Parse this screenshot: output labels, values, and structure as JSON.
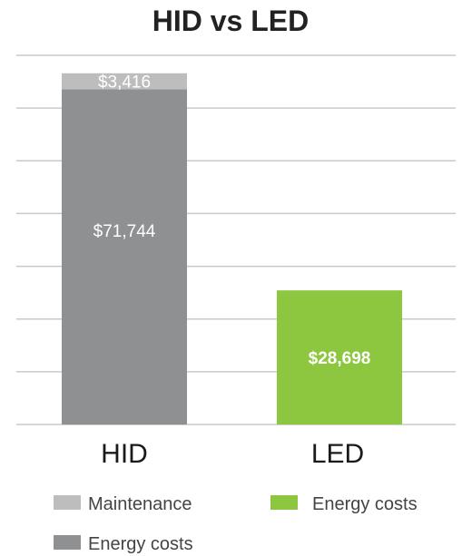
{
  "chart_data": {
    "type": "bar",
    "stacked": true,
    "title": "HID vs LED",
    "categories": [
      "HID",
      "LED"
    ],
    "series": [
      {
        "name": "Energy costs",
        "values": [
          71744,
          0
        ],
        "value_labels": [
          "$71,744",
          ""
        ],
        "color": "#8f9092"
      },
      {
        "name": "Maintenance",
        "values": [
          3416,
          0
        ],
        "value_labels": [
          "$3,416",
          ""
        ],
        "color": "#bdbdbd"
      },
      {
        "name": "Energy costs",
        "values": [
          0,
          28698
        ],
        "value_labels": [
          "",
          "$28,698"
        ],
        "color": "#8dc63f"
      }
    ],
    "ylim": [
      0,
      79000
    ],
    "grid": true,
    "legend": [
      {
        "label": "Maintenance",
        "color": "#bdbdbd"
      },
      {
        "label": "Energy costs",
        "color": "#8dc63f"
      },
      {
        "label": "Energy costs",
        "color": "#8f9092"
      }
    ],
    "legend_position": "bottom"
  }
}
